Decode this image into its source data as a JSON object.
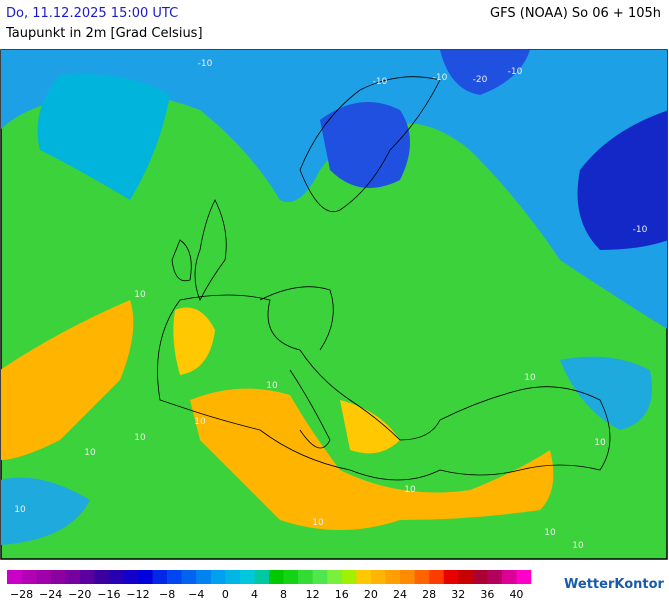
{
  "header": {
    "datetime": "Do, 11.12.2025 15:00 UTC",
    "variable": "Taupunkt in 2m [Grad Celsius]",
    "model": "GFS (NOAA) So 06 + 105h"
  },
  "map": {
    "contour_labels": [
      "-10",
      "-10",
      "-10",
      "10",
      "10",
      "-20",
      "-10",
      "-10",
      "10",
      "10",
      "10",
      "10",
      "10",
      "10",
      "10",
      "10",
      "10",
      "10"
    ]
  },
  "colorbar": {
    "colors": [
      "#c800c8",
      "#b400b4",
      "#a000aa",
      "#8c00a0",
      "#7800a0",
      "#5a00a0",
      "#3c00a0",
      "#2800b4",
      "#1400c8",
      "#0000dc",
      "#0028e6",
      "#0046f0",
      "#0064f0",
      "#0082f0",
      "#00a0f0",
      "#00b4e6",
      "#00c8dc",
      "#00c8a0",
      "#00c800",
      "#14d214",
      "#32dc32",
      "#50e650",
      "#78f03c",
      "#a0f000",
      "#ffc800",
      "#ffb400",
      "#ffa000",
      "#ff8c00",
      "#ff6400",
      "#ff3c00",
      "#e60000",
      "#c80000",
      "#aa0032",
      "#b4005a",
      "#dc0096",
      "#ff00c8"
    ],
    "labels": [
      "−28",
      "−24",
      "−20",
      "−16",
      "−12",
      "−8",
      "−4",
      "0",
      "4",
      "8",
      "12",
      "16",
      "20",
      "24",
      "28",
      "32",
      "36",
      "40"
    ]
  },
  "brand": "WetterKontor"
}
